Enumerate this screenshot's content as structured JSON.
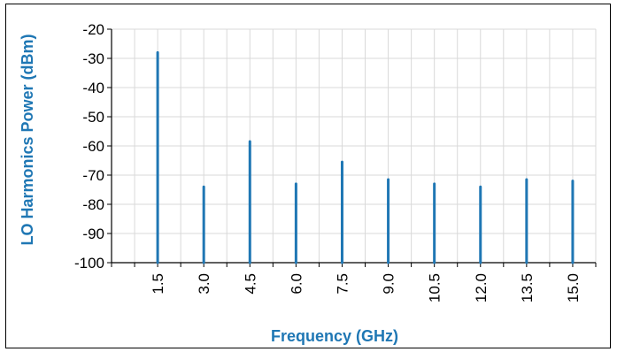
{
  "chart_data": {
    "type": "bar",
    "title": "",
    "xlabel": "Frequency (GHz)",
    "ylabel": "LO Harmonics Power (dBm)",
    "categories": [
      "1.5",
      "3.0",
      "4.5",
      "6.0",
      "7.5",
      "9.0",
      "10.5",
      "12.0",
      "13.5",
      "15.0"
    ],
    "values": [
      -28,
      -74,
      -58.5,
      -73,
      -65.5,
      -71.5,
      -73,
      -74,
      -71.5,
      -72
    ],
    "x_range": [
      0,
      15.75
    ],
    "ylim": [
      -100,
      -20
    ],
    "y_ticks": [
      "-20",
      "-30",
      "-40",
      "-50",
      "-60",
      "-70",
      "-80",
      "-90",
      "-100"
    ],
    "grid": true,
    "legend": "none",
    "colors": {
      "series": "#1f77b4",
      "axis_title": "#1f77b4",
      "grid": "#d9d9d9",
      "axis": "#000000"
    }
  }
}
